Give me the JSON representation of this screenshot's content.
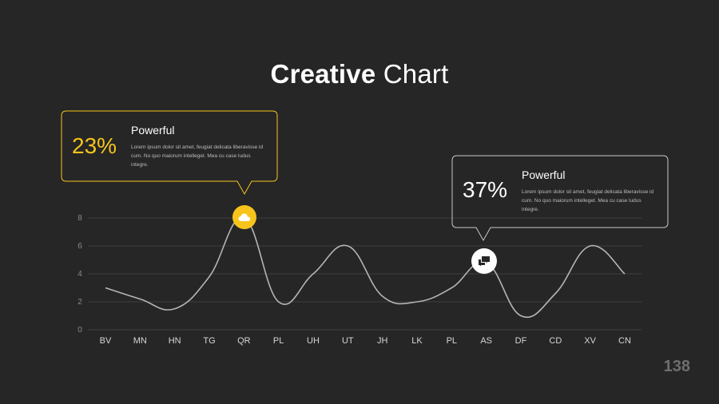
{
  "slide": {
    "title_bold": "Creative",
    "title_light": "Chart",
    "page_number": "138"
  },
  "colors": {
    "background": "#262626",
    "accent": "#f7c41c",
    "line": "#b5b5b5",
    "grid": "#3d3d3d",
    "secondary_border": "#c8c8c8"
  },
  "callouts": [
    {
      "percent": "23%",
      "heading": "Powerful",
      "text": "Lorem ipsum dolor sit amet, feugiat delicata liberavisse id cum. No quo maiorum intelleget. Mea cu case ludus integre.",
      "icon": "cloud-icon",
      "category": "QR"
    },
    {
      "percent": "37%",
      "heading": "Powerful",
      "text": "Lorem ipsum dolor sit amet, feugiat delicata liberavisse id cum. No quo maiorum intelleget. Mea cu case ludus integre.",
      "icon": "chat-bubbles-icon",
      "category": "AS"
    }
  ],
  "chart_data": {
    "type": "line",
    "smooth": true,
    "categories": [
      "BV",
      "MN",
      "HN",
      "TG",
      "QR",
      "PL",
      "UH",
      "UT",
      "JH",
      "LK",
      "PL",
      "AS",
      "DF",
      "CD",
      "XV",
      "CN"
    ],
    "values": [
      3,
      2.2,
      1.5,
      3.8,
      8,
      2,
      4,
      6,
      2.4,
      2,
      3,
      4.8,
      1,
      2.6,
      6,
      4
    ],
    "ylim": [
      0,
      8
    ],
    "yticks": [
      0,
      2,
      4,
      6,
      8
    ],
    "grid": true,
    "title": "Creative Chart"
  }
}
